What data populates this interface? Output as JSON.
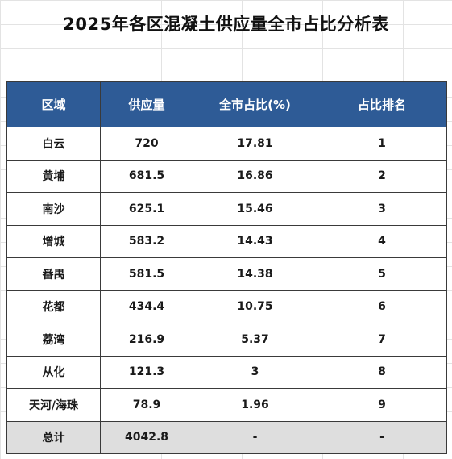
{
  "title": "2025年各区混凝土供应量全市占比分析表",
  "columns": [
    "区域",
    "供应量",
    "全市占比(%)",
    "占比排名"
  ],
  "rows": [
    [
      "白云",
      "720",
      "17.81",
      "1"
    ],
    [
      "黄埔",
      "681.5",
      "16.86",
      "2"
    ],
    [
      "南沙",
      "625.1",
      "15.46",
      "3"
    ],
    [
      "增城",
      "583.2",
      "14.43",
      "4"
    ],
    [
      "番禺",
      "581.5",
      "14.38",
      "5"
    ],
    [
      "花都",
      "434.4",
      "10.75",
      "6"
    ],
    [
      "荔湾",
      "216.9",
      "5.37",
      "7"
    ],
    [
      "从化",
      "121.3",
      "3",
      "8"
    ],
    [
      "天河/海珠",
      "78.9",
      "1.96",
      "9"
    ]
  ],
  "total": [
    "总计",
    "4042.8",
    "-",
    "-"
  ],
  "colors": {
    "header_bg": "#2e5b96",
    "header_text": "#ffffff",
    "total_row_bg": "#dedede",
    "grid_line": "#e3e3e3"
  }
}
